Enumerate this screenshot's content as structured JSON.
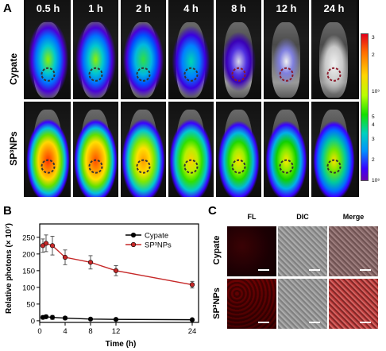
{
  "panels": {
    "a": "A",
    "b": "B",
    "c": "C"
  },
  "panel_a": {
    "time_points": [
      "0.5 h",
      "1 h",
      "2 h",
      "4 h",
      "8  h",
      "12 h",
      "24 h"
    ],
    "rows": [
      "Cypate",
      "SP³NPs"
    ],
    "colorbar_ticks": [
      "3",
      "2",
      "10⁹",
      "5",
      "4",
      "3",
      "2",
      "10⁸"
    ],
    "colors": {
      "high": "#e3001b",
      "mid": "#14e000",
      "low": "#6a00b0"
    }
  },
  "chart_data": {
    "type": "line",
    "xlabel": "Time (h)",
    "ylabel": "Relative photons (× 10⁷)",
    "xlim": [
      0,
      25
    ],
    "ylim": [
      -5,
      290
    ],
    "xticks": [
      "0",
      "4",
      "8",
      "12",
      "24"
    ],
    "yticks": [
      "0",
      "50",
      "100",
      "150",
      "200",
      "250"
    ],
    "legend_position": "top-right",
    "series": [
      {
        "name": "Cypate",
        "color": "#000000",
        "x": [
          0.5,
          1,
          2,
          4,
          8,
          12,
          24
        ],
        "y": [
          10,
          12,
          10,
          8,
          5,
          4,
          3
        ],
        "err": [
          5,
          5,
          6,
          5,
          3,
          2,
          2
        ]
      },
      {
        "name": "SP³NPs",
        "color": "#c62828",
        "x": [
          0.5,
          1,
          2,
          4,
          8,
          12,
          24
        ],
        "y": [
          225,
          232,
          225,
          190,
          175,
          150,
          108
        ],
        "err": [
          20,
          25,
          28,
          22,
          20,
          15,
          10
        ]
      }
    ]
  },
  "panel_c": {
    "columns": [
      "FL",
      "DIC",
      "Merge"
    ],
    "rows": [
      "Cypate",
      "SP³NPs"
    ]
  }
}
